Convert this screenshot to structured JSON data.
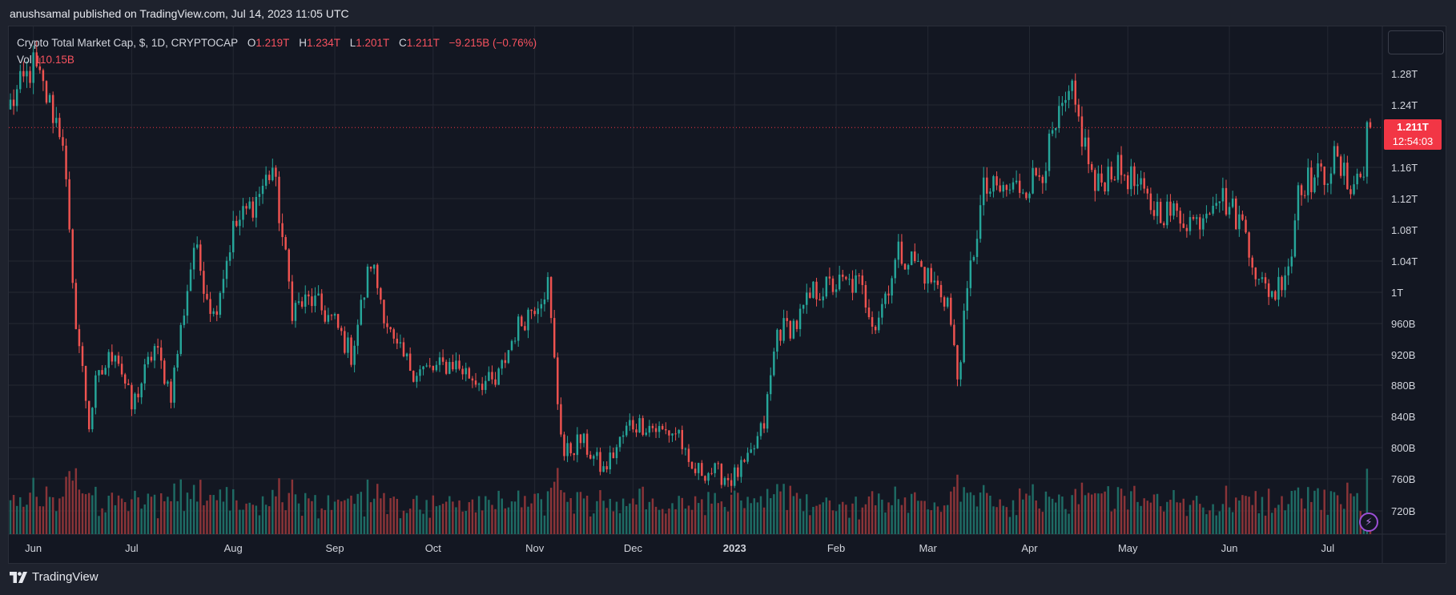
{
  "header": {
    "publish_text": "anushsamal published on TradingView.com, Jul 14, 2023 11:05 UTC"
  },
  "legend": {
    "symbol": "Crypto Total Market Cap, $, 1D, CRYPTOCAP",
    "o_label": "O",
    "o_value": "1.219T",
    "h_label": "H",
    "h_value": "1.234T",
    "l_label": "L",
    "l_value": "1.201T",
    "c_label": "C",
    "c_value": "1.211T",
    "change": "−9.215B (−0.76%)",
    "vol_label": "Vol",
    "vol_value": "110.15B"
  },
  "price_tag": {
    "price": "1.211T",
    "countdown": "12:54:03"
  },
  "footer": {
    "brand": "TradingView"
  },
  "colors": {
    "up": "#26a69a",
    "down": "#ef5350",
    "up_vol": "#1e6b64",
    "down_vol": "#8a3438",
    "background": "#131722",
    "grid": "#242833",
    "axis_text": "#d1d4dc",
    "last_price": "#f23645"
  },
  "chart_data": {
    "type": "candlestick",
    "title": "Crypto Total Market Cap, $, 1D, CRYPTOCAP",
    "y_axis": {
      "ticks": [
        "720B",
        "760B",
        "800B",
        "840B",
        "880B",
        "920B",
        "960B",
        "1T",
        "1.04T",
        "1.08T",
        "1.12T",
        "1.16T",
        "1.24T",
        "1.28T"
      ],
      "tick_values_billion": [
        720,
        760,
        800,
        840,
        880,
        920,
        960,
        1000,
        1040,
        1080,
        1120,
        1160,
        1240,
        1280
      ],
      "ylim_billion": [
        688,
        1330
      ]
    },
    "x_axis": {
      "ticks": [
        {
          "label": "Jun",
          "date": "2022-06-01"
        },
        {
          "label": "Jul",
          "date": "2022-07-01"
        },
        {
          "label": "Aug",
          "date": "2022-08-01"
        },
        {
          "label": "Sep",
          "date": "2022-09-01"
        },
        {
          "label": "Oct",
          "date": "2022-10-01"
        },
        {
          "label": "Nov",
          "date": "2022-11-01"
        },
        {
          "label": "Dec",
          "date": "2022-12-01"
        },
        {
          "label": "2023",
          "date": "2023-01-01"
        },
        {
          "label": "Feb",
          "date": "2023-02-01"
        },
        {
          "label": "Mar",
          "date": "2023-03-01"
        },
        {
          "label": "Apr",
          "date": "2023-04-01"
        },
        {
          "label": "May",
          "date": "2023-05-01"
        },
        {
          "label": "Jun",
          "date": "2023-06-01"
        },
        {
          "label": "Jul",
          "date": "2023-07-01"
        }
      ],
      "range": [
        "2022-05-25",
        "2023-07-14"
      ]
    },
    "last_price_billion": 1211,
    "close_anchors_billion": [
      [
        "2022-05-25",
        1240
      ],
      [
        "2022-06-01",
        1290
      ],
      [
        "2022-06-05",
        1250
      ],
      [
        "2022-06-10",
        1200
      ],
      [
        "2022-06-13",
        1000
      ],
      [
        "2022-06-18",
        830
      ],
      [
        "2022-06-20",
        880
      ],
      [
        "2022-06-26",
        930
      ],
      [
        "2022-07-01",
        850
      ],
      [
        "2022-07-08",
        930
      ],
      [
        "2022-07-13",
        870
      ],
      [
        "2022-07-20",
        1060
      ],
      [
        "2022-07-26",
        970
      ],
      [
        "2022-08-01",
        1080
      ],
      [
        "2022-08-08",
        1120
      ],
      [
        "2022-08-13",
        1160
      ],
      [
        "2022-08-19",
        980
      ],
      [
        "2022-08-25",
        990
      ],
      [
        "2022-09-01",
        960
      ],
      [
        "2022-09-06",
        920
      ],
      [
        "2022-09-12",
        1040
      ],
      [
        "2022-09-19",
        930
      ],
      [
        "2022-09-25",
        900
      ],
      [
        "2022-10-01",
        900
      ],
      [
        "2022-10-07",
        910
      ],
      [
        "2022-10-13",
        890
      ],
      [
        "2022-10-20",
        880
      ],
      [
        "2022-10-26",
        950
      ],
      [
        "2022-11-05",
        1010
      ],
      [
        "2022-11-08",
        860
      ],
      [
        "2022-11-10",
        790
      ],
      [
        "2022-11-15",
        810
      ],
      [
        "2022-11-22",
        770
      ],
      [
        "2022-11-30",
        830
      ],
      [
        "2022-12-05",
        830
      ],
      [
        "2022-12-10",
        820
      ],
      [
        "2022-12-15",
        820
      ],
      [
        "2022-12-18",
        770
      ],
      [
        "2022-12-25",
        770
      ],
      [
        "2022-12-31",
        760
      ],
      [
        "2023-01-05",
        780
      ],
      [
        "2023-01-10",
        830
      ],
      [
        "2023-01-14",
        950
      ],
      [
        "2023-01-20",
        960
      ],
      [
        "2023-01-25",
        1000
      ],
      [
        "2023-02-01",
        1010
      ],
      [
        "2023-02-08",
        1010
      ],
      [
        "2023-02-13",
        960
      ],
      [
        "2023-02-20",
        1050
      ],
      [
        "2023-02-25",
        1040
      ],
      [
        "2023-03-01",
        1020
      ],
      [
        "2023-03-07",
        990
      ],
      [
        "2023-03-10",
        890
      ],
      [
        "2023-03-14",
        1030
      ],
      [
        "2023-03-18",
        1130
      ],
      [
        "2023-03-25",
        1130
      ],
      [
        "2023-04-01",
        1140
      ],
      [
        "2023-04-05",
        1160
      ],
      [
        "2023-04-11",
        1230
      ],
      [
        "2023-04-14",
        1250
      ],
      [
        "2023-04-19",
        1170
      ],
      [
        "2023-04-21",
        1130
      ],
      [
        "2023-04-26",
        1160
      ],
      [
        "2023-05-01",
        1150
      ],
      [
        "2023-05-08",
        1110
      ],
      [
        "2023-05-15",
        1100
      ],
      [
        "2023-05-22",
        1090
      ],
      [
        "2023-05-28",
        1130
      ],
      [
        "2023-06-01",
        1110
      ],
      [
        "2023-06-06",
        1080
      ],
      [
        "2023-06-10",
        1010
      ],
      [
        "2023-06-15",
        1000
      ],
      [
        "2023-06-20",
        1050
      ],
      [
        "2023-06-22",
        1140
      ],
      [
        "2023-06-30",
        1150
      ],
      [
        "2023-07-03",
        1170
      ],
      [
        "2023-07-07",
        1140
      ],
      [
        "2023-07-12",
        1150
      ],
      [
        "2023-07-13",
        1219
      ],
      [
        "2023-07-14",
        1211
      ]
    ]
  }
}
